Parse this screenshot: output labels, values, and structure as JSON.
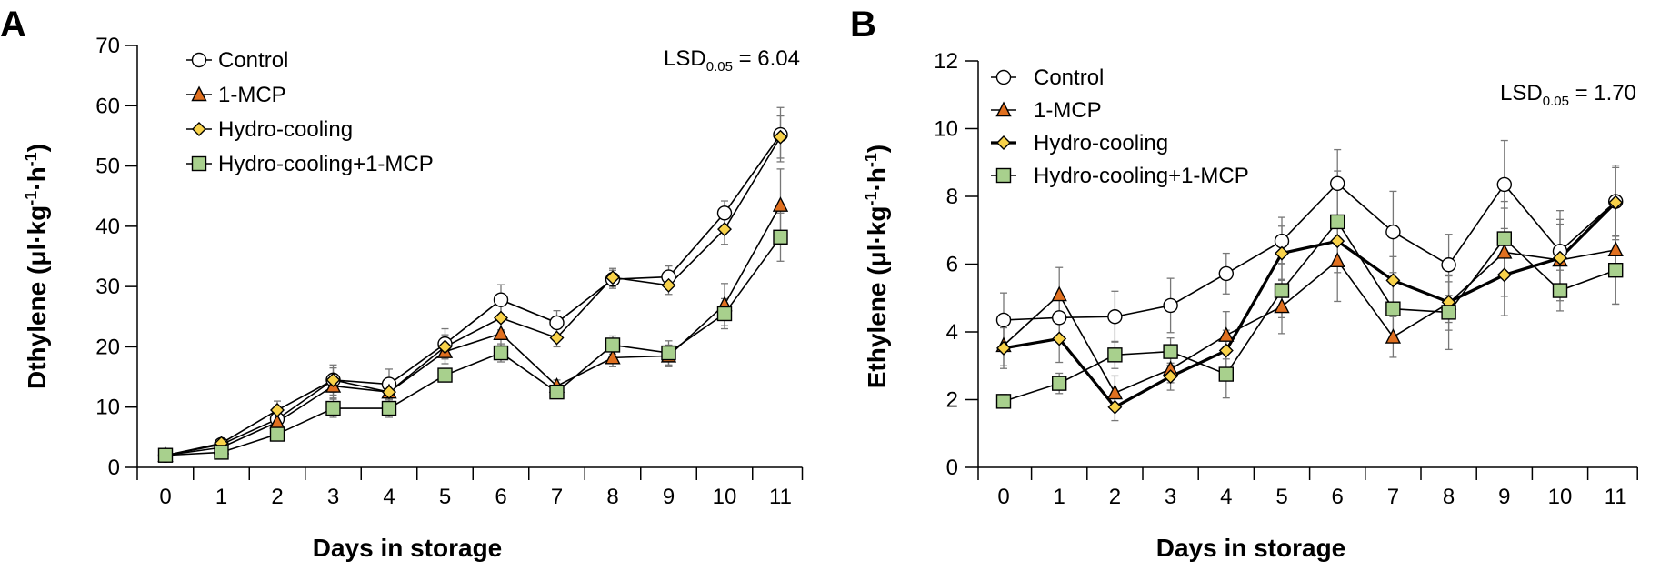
{
  "chart_data": [
    {
      "panel": "A",
      "type": "line",
      "xlabel": "Days in storage",
      "ylabel_main": "Dthylene (μl·kg",
      "ylabel_sup1": "-1",
      "ylabel_mid": "·h",
      "ylabel_sup2": "-1",
      "ylabel_end": ")",
      "ylim": [
        0,
        70
      ],
      "yticks": [
        0,
        10,
        20,
        30,
        40,
        50,
        60,
        70
      ],
      "x": [
        0,
        1,
        2,
        3,
        4,
        5,
        6,
        7,
        8,
        9,
        10,
        11
      ],
      "lsd_label": "LSD",
      "lsd_sub": "0.05",
      "lsd_value": " = 6.04",
      "series": [
        {
          "name": "Control",
          "marker": "circle",
          "color": "#ffffff",
          "values": [
            2,
            3.8,
            8,
            14.5,
            13.8,
            20.5,
            27.8,
            24,
            31.2,
            31.6,
            42.2,
            55.2
          ],
          "err": [
            0.5,
            0.8,
            1.5,
            2.5,
            2.5,
            2.5,
            2.5,
            2.0,
            1.5,
            1.8,
            2.0,
            4.5
          ]
        },
        {
          "name": "1-MCP",
          "marker": "triangle",
          "color": "#e07020",
          "values": [
            2,
            3.3,
            7.5,
            13.5,
            12.5,
            19.2,
            22.2,
            13.5,
            18.2,
            18.5,
            27,
            43.5
          ],
          "err": [
            0.5,
            0.6,
            1.2,
            2.0,
            1.5,
            2.0,
            2.0,
            1.0,
            1.5,
            1.8,
            3.5,
            6.0
          ]
        },
        {
          "name": "Hydro-cooling",
          "marker": "diamond",
          "color": "#f8d24a",
          "values": [
            2,
            4,
            9.5,
            14.5,
            12.5,
            20,
            24.8,
            21.5,
            31.5,
            30.2,
            39.5,
            54.8
          ],
          "err": [
            0.5,
            0.7,
            1.5,
            2.0,
            1.2,
            2.0,
            2.0,
            1.5,
            1.5,
            1.5,
            2.5,
            3.5
          ]
        },
        {
          "name": "Hydro-cooling+1-MCP",
          "marker": "square",
          "color": "#a8d08d",
          "values": [
            2,
            2.5,
            5.5,
            9.8,
            9.8,
            15.3,
            19,
            12.5,
            20.3,
            19,
            25.5,
            38.2
          ],
          "err": [
            0.4,
            0.5,
            1.0,
            1.5,
            1.5,
            1.0,
            1.5,
            1.0,
            1.5,
            2.0,
            2.5,
            4.0
          ]
        }
      ]
    },
    {
      "panel": "B",
      "type": "line",
      "xlabel": "Days in storage",
      "ylabel_main": "Ethylene (μl·kg",
      "ylabel_sup1": "-1",
      "ylabel_mid": "·h",
      "ylabel_sup2": "-1",
      "ylabel_end": ")",
      "ylim": [
        0,
        12
      ],
      "yticks": [
        0,
        2,
        4,
        6,
        8,
        10,
        12
      ],
      "x": [
        0,
        1,
        2,
        3,
        4,
        5,
        6,
        7,
        8,
        9,
        10,
        11
      ],
      "lsd_label": "LSD",
      "lsd_sub": "0.05",
      "lsd_value": " = 1.70",
      "series": [
        {
          "name": "Control",
          "marker": "circle",
          "color": "#ffffff",
          "values": [
            4.35,
            4.42,
            4.45,
            4.78,
            5.72,
            6.68,
            8.38,
            6.95,
            5.98,
            8.35,
            6.38,
            7.85
          ],
          "err": [
            0.8,
            0.7,
            0.75,
            0.8,
            0.6,
            0.7,
            1.0,
            1.2,
            0.9,
            1.3,
            1.2,
            1.0
          ]
        },
        {
          "name": "1-MCP",
          "marker": "triangle",
          "color": "#e07020",
          "values": [
            3.6,
            5.1,
            2.2,
            2.9,
            3.9,
            4.75,
            6.1,
            3.85,
            4.85,
            6.35,
            6.12,
            6.42
          ],
          "err": [
            0.6,
            0.8,
            0.5,
            0.4,
            0.7,
            0.8,
            1.2,
            0.6,
            0.8,
            1.3,
            1.2,
            1.6
          ]
        },
        {
          "name": "Hydro-cooling",
          "marker": "diamond",
          "color": "#f8d24a",
          "values": [
            3.52,
            3.8,
            1.78,
            2.68,
            3.45,
            6.32,
            6.68,
            5.52,
            4.88,
            5.68,
            6.18,
            7.82
          ],
          "err": [
            0.6,
            0.7,
            0.4,
            0.4,
            0.6,
            0.8,
            0.7,
            0.7,
            0.6,
            1.2,
            1.0,
            1.1
          ]
        },
        {
          "name": "Hydro-cooling+1-MCP",
          "marker": "square",
          "color": "#a8d08d",
          "values": [
            1.95,
            2.48,
            3.32,
            3.42,
            2.75,
            5.22,
            7.25,
            4.68,
            4.58,
            6.75,
            5.22,
            5.82
          ],
          "err": [
            0.2,
            0.3,
            0.4,
            0.4,
            0.7,
            0.8,
            1.5,
            0.8,
            1.1,
            1.1,
            0.6,
            1.0
          ]
        }
      ]
    }
  ]
}
